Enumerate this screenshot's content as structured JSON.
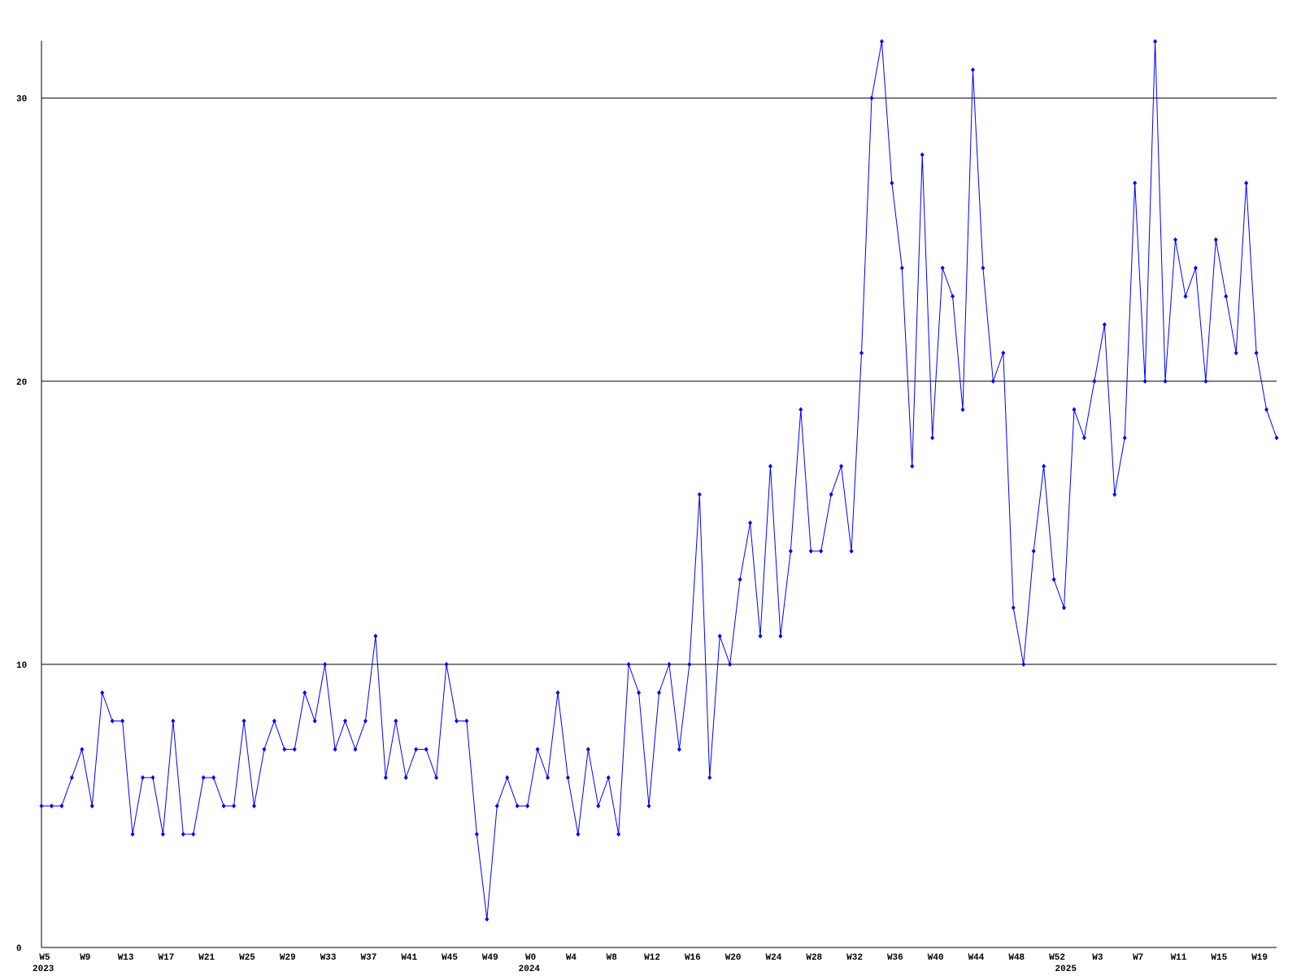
{
  "chart_data": {
    "type": "line",
    "categories": [
      "W5",
      null,
      null,
      null,
      "W9",
      null,
      null,
      null,
      "W13",
      null,
      null,
      null,
      "W17",
      null,
      null,
      null,
      "W21",
      null,
      null,
      null,
      "W25",
      null,
      null,
      null,
      "W29",
      null,
      null,
      null,
      "W33",
      null,
      null,
      null,
      "W37",
      null,
      null,
      null,
      "W41",
      null,
      null,
      null,
      "W45",
      null,
      null,
      null,
      "W49",
      null,
      null,
      null,
      "W0",
      null,
      null,
      null,
      "W4",
      null,
      null,
      null,
      "W8",
      null,
      null,
      null,
      "W12",
      null,
      null,
      null,
      "W16",
      null,
      null,
      null,
      "W20",
      null,
      null,
      null,
      "W24",
      null,
      null,
      null,
      "W28",
      null,
      null,
      null,
      "W32",
      null,
      null,
      null,
      "W36",
      null,
      null,
      null,
      "W40",
      null,
      null,
      null,
      "W44",
      null,
      null,
      null,
      "W48",
      null,
      null,
      null,
      "W52",
      null,
      null,
      null,
      "W3",
      null,
      null,
      null,
      "W7",
      null,
      null,
      null,
      "W11",
      null,
      null,
      null,
      "W15",
      null,
      null,
      null,
      "W19",
      null,
      null
    ],
    "category_years": [
      "2023",
      null,
      null,
      null,
      null,
      null,
      null,
      null,
      null,
      null,
      null,
      null,
      null,
      null,
      null,
      null,
      null,
      null,
      null,
      null,
      null,
      null,
      null,
      null,
      null,
      null,
      null,
      null,
      null,
      null,
      null,
      null,
      null,
      null,
      null,
      null,
      null,
      null,
      null,
      null,
      null,
      null,
      null,
      null,
      null,
      null,
      null,
      null,
      "2024",
      null,
      null,
      null,
      null,
      null,
      null,
      null,
      null,
      null,
      null,
      null,
      null,
      null,
      null,
      null,
      null,
      null,
      null,
      null,
      null,
      null,
      null,
      null,
      null,
      null,
      null,
      null,
      null,
      null,
      null,
      null,
      null,
      null,
      null,
      null,
      null,
      null,
      null,
      null,
      null,
      null,
      null,
      null,
      null,
      null,
      null,
      null,
      null,
      null,
      null,
      null,
      null,
      "2025",
      null,
      null,
      null,
      null,
      null,
      null,
      null,
      null,
      null,
      null,
      null,
      null,
      null,
      null,
      null,
      null,
      null,
      null,
      null,
      null,
      null
    ],
    "series": [
      {
        "color": "#0000ff",
        "values": [
          5,
          5,
          5,
          6,
          7,
          5,
          9,
          8,
          8,
          4,
          6,
          6,
          4,
          8,
          4,
          4,
          6,
          6,
          5,
          5,
          8,
          5,
          7,
          8,
          7,
          7,
          9,
          8,
          10,
          7,
          8,
          7,
          8,
          11,
          6,
          8,
          6,
          7,
          7,
          6,
          10,
          8,
          8,
          4,
          1,
          5,
          6,
          5,
          5,
          7,
          6,
          9,
          6,
          4,
          7,
          5,
          6,
          4,
          10,
          9,
          5,
          9,
          10,
          7,
          10,
          16,
          6,
          11,
          10,
          13,
          15,
          11,
          17,
          11,
          14,
          19,
          14,
          14,
          16,
          17,
          14,
          21,
          30,
          32,
          27,
          24,
          17,
          28,
          18,
          24,
          23,
          19,
          31,
          24,
          20,
          21,
          12,
          10,
          14,
          17,
          13,
          12,
          19,
          18,
          20,
          22,
          16,
          18,
          27,
          20,
          32,
          20,
          25,
          23,
          24,
          20,
          25,
          23,
          21,
          27,
          21,
          19,
          18
        ]
      }
    ],
    "ylim": [
      0,
      32
    ],
    "yticks": [
      0,
      10,
      20,
      30
    ],
    "grid": true
  }
}
